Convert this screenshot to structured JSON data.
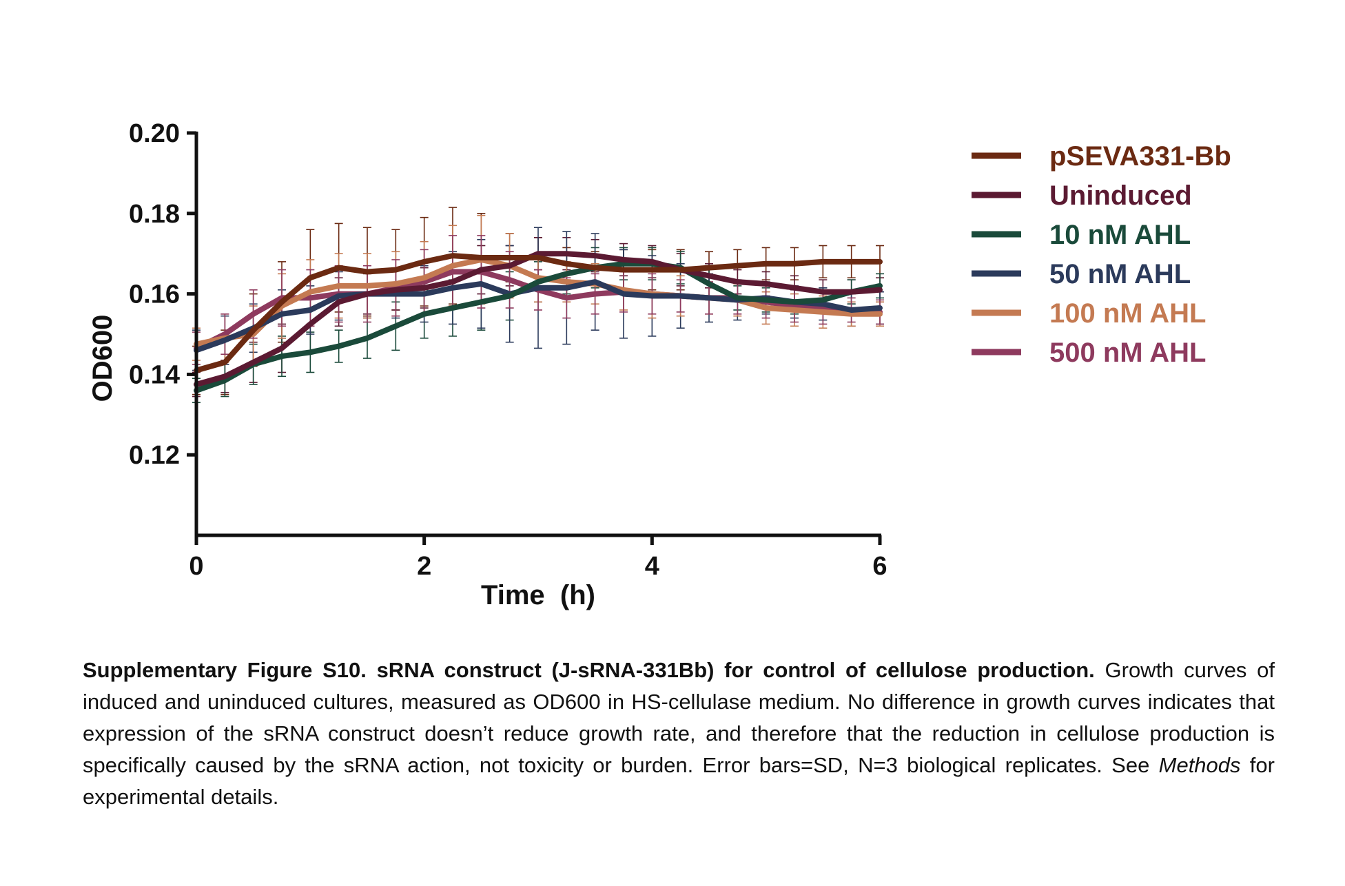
{
  "chart_data": {
    "type": "line",
    "title": "",
    "xlabel": "Time  (h)",
    "ylabel": "OD600",
    "xlim": [
      0,
      6
    ],
    "ylim": [
      0.1,
      0.2
    ],
    "x_ticks": [
      "0",
      "2",
      "4",
      "6"
    ],
    "y_ticks": [
      "0.20",
      "0.18",
      "0.16",
      "0.14",
      "0.12"
    ],
    "legend_position": "right",
    "grid": false,
    "x": [
      0,
      0.25,
      0.5,
      0.75,
      1,
      1.25,
      1.5,
      1.75,
      2,
      2.25,
      2.5,
      2.75,
      3,
      3.25,
      3.5,
      3.75,
      4,
      4.25,
      4.5,
      4.75,
      5,
      5.25,
      5.5,
      5.75,
      6
    ],
    "series": [
      {
        "name": "pSEVA331-Bb",
        "color": "#6b2a12",
        "values": [
          0.141,
          0.143,
          0.151,
          0.158,
          0.164,
          0.1665,
          0.1655,
          0.166,
          0.168,
          0.1695,
          0.169,
          0.169,
          0.169,
          0.1675,
          0.1665,
          0.166,
          0.166,
          0.166,
          0.1665,
          0.167,
          0.1675,
          0.1675,
          0.168,
          0.168,
          0.168
        ],
        "errors": [
          0.006,
          0.008,
          0.009,
          0.01,
          0.012,
          0.011,
          0.011,
          0.01,
          0.011,
          0.012,
          0.011,
          0.006,
          0.005,
          0.004,
          0.004,
          0.005,
          0.005,
          0.005,
          0.004,
          0.004,
          0.004,
          0.004,
          0.004,
          0.004,
          0.004
        ]
      },
      {
        "name": "Uninduced",
        "color": "#5b1a32",
        "values": [
          0.1375,
          0.1395,
          0.143,
          0.1465,
          0.1525,
          0.158,
          0.16,
          0.161,
          0.1615,
          0.163,
          0.166,
          0.167,
          0.17,
          0.17,
          0.1695,
          0.1685,
          0.168,
          0.166,
          0.1645,
          0.163,
          0.1625,
          0.1615,
          0.1605,
          0.1605,
          0.161
        ],
        "errors": [
          0.003,
          0.004,
          0.005,
          0.006,
          0.007,
          0.006,
          0.005,
          0.005,
          0.005,
          0.006,
          0.006,
          0.005,
          0.004,
          0.004,
          0.004,
          0.004,
          0.004,
          0.004,
          0.003,
          0.003,
          0.003,
          0.003,
          0.003,
          0.003,
          0.003
        ]
      },
      {
        "name": "10 nM AHL",
        "color": "#1a4a3a",
        "values": [
          0.136,
          0.1385,
          0.1425,
          0.1445,
          0.1455,
          0.147,
          0.149,
          0.152,
          0.155,
          0.1565,
          0.158,
          0.1595,
          0.163,
          0.165,
          0.1665,
          0.1675,
          0.1675,
          0.1665,
          0.1625,
          0.159,
          0.1585,
          0.158,
          0.1585,
          0.1605,
          0.162
        ],
        "errors": [
          0.003,
          0.004,
          0.005,
          0.005,
          0.005,
          0.004,
          0.005,
          0.006,
          0.006,
          0.007,
          0.007,
          0.006,
          0.005,
          0.005,
          0.005,
          0.004,
          0.004,
          0.004,
          0.004,
          0.003,
          0.003,
          0.003,
          0.003,
          0.003,
          0.003
        ]
      },
      {
        "name": "50 nM AHL",
        "color": "#2b3a5b",
        "values": [
          0.146,
          0.1485,
          0.1515,
          0.155,
          0.156,
          0.1595,
          0.16,
          0.16,
          0.16,
          0.1615,
          0.1625,
          0.16,
          0.1615,
          0.1615,
          0.163,
          0.16,
          0.1595,
          0.1595,
          0.159,
          0.1585,
          0.159,
          0.158,
          0.1575,
          0.156,
          0.1565
        ],
        "errors": [
          0.005,
          0.006,
          0.006,
          0.006,
          0.006,
          0.006,
          0.006,
          0.006,
          0.007,
          0.009,
          0.011,
          0.012,
          0.015,
          0.014,
          0.012,
          0.011,
          0.01,
          0.008,
          0.006,
          0.005,
          0.004,
          0.004,
          0.004,
          0.004,
          0.004
        ]
      },
      {
        "name": "100 nM AHL",
        "color": "#c47a52",
        "values": [
          0.1475,
          0.149,
          0.15,
          0.157,
          0.1605,
          0.162,
          0.162,
          0.1625,
          0.164,
          0.167,
          0.1685,
          0.167,
          0.164,
          0.163,
          0.1625,
          0.161,
          0.16,
          0.1595,
          0.159,
          0.1585,
          0.1565,
          0.156,
          0.1555,
          0.155,
          0.155
        ],
        "errors": [
          0.004,
          0.006,
          0.007,
          0.008,
          0.008,
          0.008,
          0.008,
          0.008,
          0.009,
          0.01,
          0.011,
          0.008,
          0.006,
          0.005,
          0.005,
          0.005,
          0.006,
          0.005,
          0.004,
          0.004,
          0.004,
          0.004,
          0.004,
          0.003,
          0.003
        ]
      },
      {
        "name": "500 nM AHL",
        "color": "#8e3a5e",
        "values": [
          0.1465,
          0.15,
          0.155,
          0.159,
          0.159,
          0.16,
          0.16,
          0.1615,
          0.163,
          0.1655,
          0.1655,
          0.1635,
          0.161,
          0.159,
          0.16,
          0.1605,
          0.16,
          0.1595,
          0.159,
          0.159,
          0.158,
          0.157,
          0.1565,
          0.156,
          0.1555
        ],
        "errors": [
          0.004,
          0.005,
          0.006,
          0.007,
          0.007,
          0.007,
          0.007,
          0.007,
          0.008,
          0.009,
          0.009,
          0.007,
          0.005,
          0.005,
          0.005,
          0.005,
          0.005,
          0.004,
          0.004,
          0.004,
          0.004,
          0.004,
          0.004,
          0.003,
          0.003
        ]
      }
    ]
  },
  "caption": {
    "bold_part": "Supplementary Figure S10. sRNA construct (J-sRNA-331Bb) for control of cellulose production.",
    "text_part_1": " Growth curves of induced and uninduced cultures, measured as OD600 in HS-cellulase medium.  No difference in growth curves indicates that expression of the sRNA construct doesn’t reduce growth rate, and therefore that the reduction in cellulose production is specifically caused by the sRNA action, not toxicity or burden. Error bars=SD, N=3 biological replicates. See ",
    "italic_part": "Methods",
    "text_part_2": " for experimental details."
  }
}
